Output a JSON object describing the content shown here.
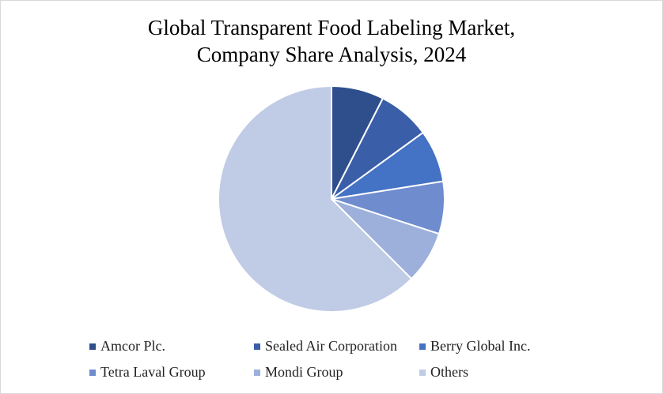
{
  "chart_data": {
    "type": "pie",
    "title_line1": "Global Transparent Food Labeling Market,",
    "title_line2": "Company Share Analysis, 2024",
    "categories": [
      "Amcor Plc.",
      "Sealed Air Corporation",
      "Berry Global Inc.",
      "Tetra Laval Group",
      "Mondi Group",
      "Others"
    ],
    "values": [
      7.5,
      7.5,
      7.5,
      7.5,
      7.5,
      62.5
    ],
    "colors": [
      "#2e4e8c",
      "#3a5ea8",
      "#4472c4",
      "#6f8ccf",
      "#9dafdb",
      "#c0cbe6"
    ],
    "legend_position": "bottom"
  }
}
